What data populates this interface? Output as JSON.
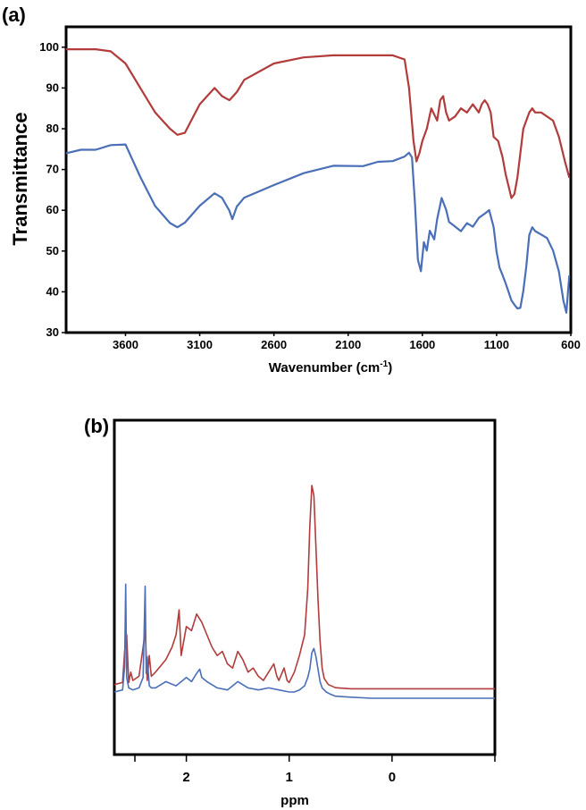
{
  "panels": {
    "a_label": "(a)",
    "b_label": "(b)"
  },
  "colors": {
    "red": "#b23b3b",
    "blue": "#4a6fb8",
    "axis": "#000000"
  },
  "chart_data": [
    {
      "type": "line",
      "panel": "(a)",
      "xlabel": "Wavenumber (cm",
      "xlabel_sup": "-1",
      "xlabel_tail": ")",
      "ylabel": "Transmittance",
      "xlim": [
        4000,
        600
      ],
      "ylim": [
        30,
        105
      ],
      "x_ticks": [
        3600,
        3100,
        2600,
        2100,
        1600,
        1100,
        600
      ],
      "y_ticks": [
        30,
        40,
        50,
        60,
        70,
        80,
        90,
        100
      ],
      "grid": false,
      "series": [
        {
          "color": "#b23b3b",
          "x": [
            4000,
            3800,
            3700,
            3600,
            3500,
            3400,
            3300,
            3250,
            3200,
            3100,
            3000,
            2950,
            2900,
            2850,
            2800,
            2600,
            2400,
            2200,
            2000,
            1800,
            1720,
            1690,
            1660,
            1640,
            1620,
            1600,
            1570,
            1540,
            1500,
            1480,
            1460,
            1440,
            1420,
            1380,
            1340,
            1300,
            1260,
            1240,
            1220,
            1200,
            1180,
            1160,
            1140,
            1120,
            1090,
            1060,
            1040,
            1020,
            1000,
            980,
            960,
            920,
            880,
            860,
            840,
            800,
            760,
            720,
            680,
            640,
            610
          ],
          "y": [
            99.5,
            99.5,
            99,
            96,
            90,
            84,
            80,
            78.5,
            79,
            86,
            90,
            88,
            87,
            89,
            92,
            96,
            97.5,
            98,
            98,
            98,
            97,
            90,
            77,
            72,
            74,
            77,
            80,
            85,
            82,
            87,
            88,
            84,
            82,
            83,
            85,
            84,
            86,
            85,
            84,
            86,
            87,
            86,
            84,
            78,
            77,
            73,
            69,
            66,
            63,
            64,
            68,
            80,
            84,
            85,
            84,
            84,
            83,
            82,
            78,
            72,
            68
          ]
        },
        {
          "color": "#4a6fb8",
          "x": [
            4000,
            3900,
            3800,
            3700,
            3600,
            3500,
            3400,
            3300,
            3250,
            3200,
            3100,
            3000,
            2950,
            2900,
            2880,
            2850,
            2800,
            2600,
            2400,
            2200,
            2000,
            1900,
            1800,
            1720,
            1690,
            1670,
            1650,
            1630,
            1610,
            1590,
            1570,
            1550,
            1520,
            1500,
            1470,
            1440,
            1420,
            1380,
            1340,
            1300,
            1260,
            1220,
            1180,
            1150,
            1120,
            1100,
            1080,
            1060,
            1040,
            1020,
            1000,
            980,
            960,
            940,
            920,
            900,
            880,
            860,
            840,
            800,
            760,
            720,
            680,
            650,
            630,
            610
          ],
          "y": [
            74,
            75,
            75,
            76,
            76,
            68,
            61,
            57,
            56,
            57,
            61,
            64,
            63,
            60,
            58,
            61,
            63,
            66,
            69,
            71,
            71,
            72,
            72,
            73,
            74,
            73,
            62,
            48,
            45,
            52,
            50,
            55,
            53,
            58,
            63,
            60,
            57,
            56,
            55,
            57,
            56,
            58,
            59,
            60,
            56,
            50,
            46,
            44,
            42,
            40,
            38,
            37,
            36,
            36,
            40,
            46,
            54,
            56,
            55,
            54,
            53,
            50,
            45,
            38,
            35,
            44
          ]
        }
      ]
    },
    {
      "type": "line",
      "panel": "(b)",
      "xlabel": "ppm",
      "xlim": [
        2.7,
        -1.0
      ],
      "x_ticks": [
        2,
        1,
        0
      ],
      "grid": false,
      "series": [
        {
          "color": "#b23b3b",
          "x": [
            2.7,
            2.62,
            2.6,
            2.58,
            2.56,
            2.54,
            2.52,
            2.46,
            2.42,
            2.4,
            2.38,
            2.36,
            2.34,
            2.3,
            2.2,
            2.14,
            2.1,
            2.07,
            2.05,
            2.0,
            1.95,
            1.9,
            1.85,
            1.8,
            1.75,
            1.7,
            1.65,
            1.6,
            1.55,
            1.5,
            1.45,
            1.4,
            1.35,
            1.3,
            1.25,
            1.2,
            1.15,
            1.12,
            1.1,
            1.05,
            1.02,
            1.0,
            0.95,
            0.9,
            0.85,
            0.82,
            0.8,
            0.78,
            0.76,
            0.74,
            0.72,
            0.7,
            0.68,
            0.66,
            0.62,
            0.55,
            0.4,
            0.2,
            0.0,
            -0.4,
            -1.0
          ],
          "y": [
            0.04,
            0.05,
            0.2,
            0.28,
            0.05,
            0.1,
            0.06,
            0.08,
            0.22,
            0.3,
            0.06,
            0.18,
            0.08,
            0.1,
            0.16,
            0.22,
            0.28,
            0.4,
            0.18,
            0.32,
            0.3,
            0.38,
            0.34,
            0.28,
            0.22,
            0.18,
            0.2,
            0.14,
            0.12,
            0.2,
            0.16,
            0.1,
            0.12,
            0.08,
            0.06,
            0.1,
            0.14,
            0.08,
            0.06,
            0.12,
            0.06,
            0.05,
            0.1,
            0.18,
            0.28,
            0.5,
            0.8,
            1.0,
            0.95,
            0.7,
            0.45,
            0.25,
            0.12,
            0.07,
            0.04,
            0.025,
            0.02,
            0.02,
            0.02,
            0.02,
            0.02
          ]
        },
        {
          "color": "#4a6fb8",
          "x": [
            2.7,
            2.62,
            2.6,
            2.59,
            2.58,
            2.56,
            2.52,
            2.46,
            2.42,
            2.4,
            2.39,
            2.38,
            2.36,
            2.34,
            2.3,
            2.2,
            2.1,
            2.0,
            1.95,
            1.9,
            1.87,
            1.85,
            1.8,
            1.7,
            1.6,
            1.55,
            1.5,
            1.4,
            1.3,
            1.2,
            1.1,
            1.0,
            0.95,
            0.9,
            0.85,
            0.82,
            0.8,
            0.78,
            0.76,
            0.74,
            0.72,
            0.7,
            0.68,
            0.64,
            0.6,
            0.55,
            0.4,
            0.2,
            0.0,
            -0.4,
            -1.0
          ],
          "y": [
            0.03,
            0.04,
            0.15,
            0.55,
            0.1,
            0.05,
            0.04,
            0.05,
            0.1,
            0.54,
            0.12,
            0.2,
            0.06,
            0.05,
            0.05,
            0.08,
            0.06,
            0.1,
            0.08,
            0.12,
            0.14,
            0.1,
            0.08,
            0.05,
            0.04,
            0.06,
            0.08,
            0.05,
            0.04,
            0.05,
            0.04,
            0.03,
            0.03,
            0.04,
            0.06,
            0.1,
            0.14,
            0.22,
            0.24,
            0.2,
            0.14,
            0.08,
            0.05,
            0.03,
            0.02,
            0.01,
            0.005,
            0.0,
            0.0,
            0.0,
            0.0
          ]
        }
      ]
    }
  ]
}
